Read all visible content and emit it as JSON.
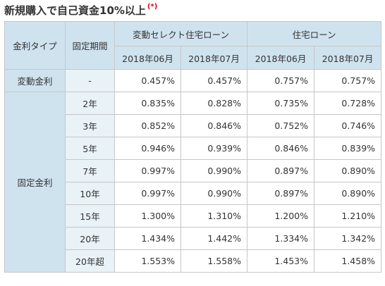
{
  "title": "新規購入で自己資金10%以上",
  "note": "(*)",
  "columns": {
    "rate_type": "金利タイプ",
    "term": "固定期間",
    "group1": "変動セレクト住宅ローン",
    "group2": "住宅ローン",
    "months": [
      "2018年06月",
      "2018年07月",
      "2018年06月",
      "2018年07月"
    ]
  },
  "sections": {
    "variable": "変動金利",
    "fixed": "固定金利"
  },
  "rows": [
    {
      "term": "-",
      "values": [
        "0.457%",
        "0.457%",
        "0.757%",
        "0.757%"
      ]
    },
    {
      "term": "2年",
      "values": [
        "0.835%",
        "0.828%",
        "0.735%",
        "0.728%"
      ]
    },
    {
      "term": "3年",
      "values": [
        "0.852%",
        "0.846%",
        "0.752%",
        "0.746%"
      ]
    },
    {
      "term": "5年",
      "values": [
        "0.946%",
        "0.939%",
        "0.846%",
        "0.839%"
      ]
    },
    {
      "term": "7年",
      "values": [
        "0.997%",
        "0.990%",
        "0.897%",
        "0.890%"
      ]
    },
    {
      "term": "10年",
      "values": [
        "0.997%",
        "0.990%",
        "0.897%",
        "0.890%"
      ]
    },
    {
      "term": "15年",
      "values": [
        "1.300%",
        "1.310%",
        "1.200%",
        "1.210%"
      ]
    },
    {
      "term": "20年",
      "values": [
        "1.434%",
        "1.442%",
        "1.334%",
        "1.342%"
      ]
    },
    {
      "term": "20年超",
      "values": [
        "1.553%",
        "1.558%",
        "1.453%",
        "1.458%"
      ]
    }
  ]
}
